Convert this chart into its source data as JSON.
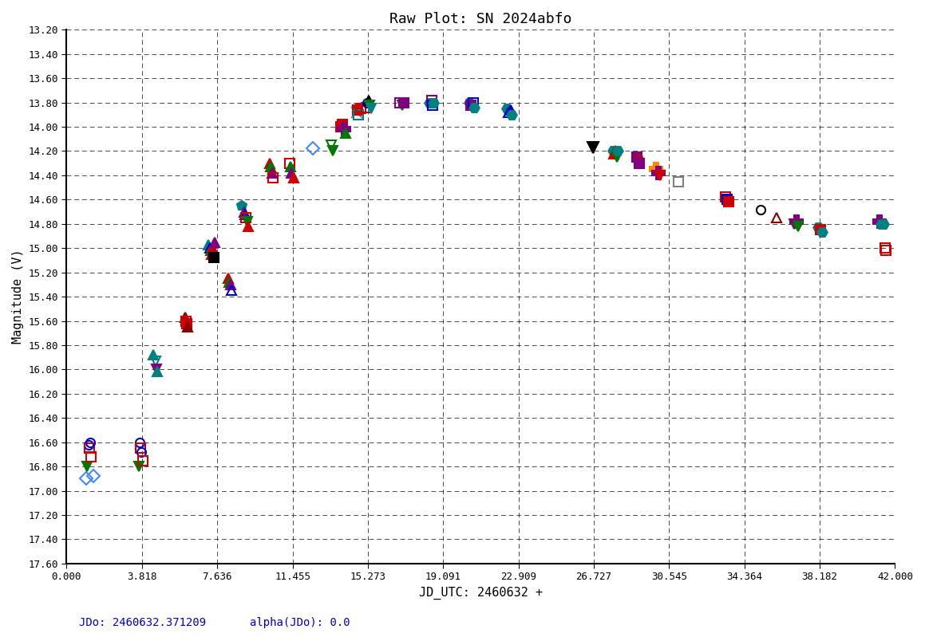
{
  "title": "Raw Plot: SN 2024abfo",
  "xlabel": "JD_UTC: 2460632 +",
  "ylabel": "Magnitude (V)",
  "xlim": [
    0.0,
    42.0
  ],
  "ylim": [
    17.6,
    13.2
  ],
  "xticks": [
    0.0,
    3.818,
    7.636,
    11.455,
    15.273,
    19.091,
    22.909,
    26.727,
    30.545,
    34.364,
    38.182,
    42.0
  ],
  "yticks": [
    13.2,
    13.4,
    13.6,
    13.8,
    14.0,
    14.2,
    14.4,
    14.6,
    14.8,
    15.0,
    15.2,
    15.4,
    15.6,
    15.8,
    16.0,
    16.2,
    16.4,
    16.6,
    16.8,
    17.0,
    17.2,
    17.4,
    17.6
  ],
  "footer_left": "JDo: 2460632.371209",
  "footer_right": "alpha(JDo): 0.0",
  "background_color": "#ffffff",
  "plot_bg_color": "#ffffff",
  "lightcurve_data": [
    [
      1.0,
      16.9,
      "#4488ff",
      "D",
      8,
      "none"
    ],
    [
      1.05,
      16.8,
      "#007700",
      "v",
      9,
      "#007700"
    ],
    [
      1.1,
      16.62,
      "#0000cc",
      "o",
      8,
      "none"
    ],
    [
      1.15,
      16.65,
      "#cc0000",
      "s",
      8,
      "none"
    ],
    [
      1.2,
      16.6,
      "#0000cc",
      "o",
      8,
      "none"
    ],
    [
      1.25,
      16.72,
      "#cc0000",
      "s",
      8,
      "none"
    ],
    [
      1.35,
      16.88,
      "#4488ff",
      "D",
      8,
      "none"
    ],
    [
      3.65,
      16.8,
      "#007700",
      "v",
      9,
      "#007700"
    ],
    [
      3.7,
      16.6,
      "#0000cc",
      "o",
      8,
      "none"
    ],
    [
      3.75,
      16.65,
      "#cc0000",
      "s",
      8,
      "none"
    ],
    [
      3.8,
      16.68,
      "#0000cc",
      "o",
      8,
      "none"
    ],
    [
      3.85,
      16.75,
      "#cc0000",
      "s",
      8,
      "none"
    ],
    [
      4.4,
      15.88,
      "#008080",
      "^",
      9,
      "#008080"
    ],
    [
      4.5,
      15.93,
      "#008080",
      "v",
      9,
      "none"
    ],
    [
      4.55,
      16.0,
      "#800080",
      "v",
      9,
      "#800080"
    ],
    [
      4.6,
      16.02,
      "#008080",
      "^",
      9,
      "#008080"
    ],
    [
      6.0,
      15.57,
      "#880000",
      "^",
      9,
      "#880000"
    ],
    [
      6.05,
      15.6,
      "#cc0000",
      "s",
      8,
      "none"
    ],
    [
      6.1,
      15.62,
      "#cc0000",
      "s",
      8,
      "#cc0000"
    ],
    [
      6.15,
      15.65,
      "#880000",
      "^",
      9,
      "#880000"
    ],
    [
      7.2,
      14.97,
      "#008080",
      "^",
      9,
      "#008080"
    ],
    [
      7.25,
      15.0,
      "#0000cc",
      "^",
      9,
      "none"
    ],
    [
      7.3,
      15.02,
      "#007700",
      "^",
      9,
      "#007700"
    ],
    [
      7.35,
      15.05,
      "#cc0000",
      "^",
      9,
      "#cc0000"
    ],
    [
      7.4,
      15.0,
      "#cc0000",
      "^",
      9,
      "#cc0000"
    ],
    [
      7.45,
      15.08,
      "#000000",
      "s",
      8,
      "#000000"
    ],
    [
      7.5,
      14.95,
      "#800080",
      "^",
      9,
      "#800080"
    ],
    [
      8.2,
      15.25,
      "#cc0000",
      "^",
      9,
      "#cc0000"
    ],
    [
      8.25,
      15.28,
      "#007700",
      "^",
      9,
      "#007700"
    ],
    [
      8.3,
      15.3,
      "#800080",
      "^",
      9,
      "#800080"
    ],
    [
      8.35,
      15.35,
      "#0000cc",
      "^",
      9,
      "none"
    ],
    [
      8.9,
      14.65,
      "#008080",
      "p",
      9,
      "#008080"
    ],
    [
      9.0,
      14.7,
      "#800080",
      "^",
      9,
      "#800080"
    ],
    [
      9.05,
      14.72,
      "#0000cc",
      "^",
      9,
      "none"
    ],
    [
      9.1,
      14.75,
      "#cc0000",
      "s",
      8,
      "none"
    ],
    [
      9.15,
      14.78,
      "#007700",
      "v",
      9,
      "#007700"
    ],
    [
      9.2,
      14.82,
      "#cc0000",
      "^",
      9,
      "#cc0000"
    ],
    [
      10.3,
      14.3,
      "#cc0000",
      "^",
      9,
      "#cc0000"
    ],
    [
      10.35,
      14.33,
      "#007700",
      "^",
      9,
      "#007700"
    ],
    [
      10.4,
      14.38,
      "#800080",
      "^",
      9,
      "#800080"
    ],
    [
      10.45,
      14.42,
      "#cc0000",
      "s",
      8,
      "none"
    ],
    [
      11.3,
      14.3,
      "#cc0000",
      "s",
      8,
      "none"
    ],
    [
      11.35,
      14.33,
      "#007700",
      "^",
      9,
      "#007700"
    ],
    [
      11.4,
      14.38,
      "#800080",
      "^",
      9,
      "#800080"
    ],
    [
      11.5,
      14.42,
      "#cc0000",
      "^",
      9,
      "#cc0000"
    ],
    [
      12.5,
      14.18,
      "#4488ff",
      "D",
      8,
      "none"
    ],
    [
      13.4,
      14.15,
      "#007700",
      "v",
      9,
      "none"
    ],
    [
      13.5,
      14.2,
      "#007700",
      "v",
      9,
      "#007700"
    ],
    [
      13.9,
      14.0,
      "#cc0000",
      "s",
      8,
      "none"
    ],
    [
      14.0,
      13.98,
      "#cc0000",
      "s",
      8,
      "#cc0000"
    ],
    [
      14.05,
      14.02,
      "#800080",
      "P",
      11,
      "#800080"
    ],
    [
      14.15,
      14.05,
      "#007700",
      "^",
      9,
      "#007700"
    ],
    [
      14.7,
      13.88,
      "#808080",
      "x",
      10,
      "#808080"
    ],
    [
      14.75,
      13.86,
      "#cc0000",
      "s",
      8,
      "#cc0000"
    ],
    [
      14.8,
      13.9,
      "#008080",
      "s",
      8,
      "none"
    ],
    [
      14.9,
      13.85,
      "#cc0000",
      "s",
      8,
      "none"
    ],
    [
      15.2,
      13.84,
      "#cc0000",
      "s",
      8,
      "none"
    ],
    [
      15.25,
      13.8,
      "#0000cc",
      "o",
      8,
      "none"
    ],
    [
      15.3,
      13.78,
      "#000000",
      "^",
      9,
      "#000000"
    ],
    [
      15.35,
      13.82,
      "#007700",
      "v",
      9,
      "#007700"
    ],
    [
      15.45,
      13.85,
      "#008080",
      "v",
      9,
      "#008080"
    ],
    [
      16.9,
      13.8,
      "#800080",
      "s",
      8,
      "none"
    ],
    [
      17.0,
      13.82,
      "#007700",
      "v",
      9,
      "#007700"
    ],
    [
      17.1,
      13.8,
      "#800080",
      "s",
      8,
      "#800080"
    ],
    [
      18.4,
      13.8,
      "#008080",
      "H",
      9,
      "#008080"
    ],
    [
      18.5,
      13.78,
      "#800080",
      "s",
      8,
      "none"
    ],
    [
      18.55,
      13.82,
      "#0000cc",
      "s",
      8,
      "none"
    ],
    [
      18.6,
      13.8,
      "#008080",
      "H",
      9,
      "#008080"
    ],
    [
      20.4,
      13.8,
      "#008080",
      "H",
      9,
      "#008080"
    ],
    [
      20.5,
      13.82,
      "#800080",
      "s",
      8,
      "#800080"
    ],
    [
      20.6,
      13.8,
      "#0000cc",
      "s",
      8,
      "none"
    ],
    [
      20.65,
      13.84,
      "#008080",
      "H",
      9,
      "#008080"
    ],
    [
      22.3,
      13.85,
      "#008080",
      "H",
      9,
      "#008080"
    ],
    [
      22.4,
      13.88,
      "#0000cc",
      "^",
      9,
      "none"
    ],
    [
      22.5,
      13.86,
      "#0000cc",
      "^",
      9,
      "#0000cc"
    ],
    [
      22.55,
      13.9,
      "#008080",
      "H",
      9,
      "#008080"
    ],
    [
      26.7,
      14.17,
      "#000000",
      "v",
      10,
      "#000000"
    ],
    [
      27.7,
      14.2,
      "#008080",
      "H",
      9,
      "#008080"
    ],
    [
      27.75,
      14.22,
      "#cc0000",
      "^",
      9,
      "#cc0000"
    ],
    [
      27.8,
      14.2,
      "#cc0000",
      "^",
      9,
      "#cc0000"
    ],
    [
      27.9,
      14.25,
      "#007700",
      "v",
      9,
      "#007700"
    ],
    [
      27.95,
      14.2,
      "#008080",
      "H",
      9,
      "#008080"
    ],
    [
      28.9,
      14.25,
      "#800080",
      "s",
      8,
      "#800080"
    ],
    [
      29.0,
      14.27,
      "#cc0000",
      "o",
      8,
      "none"
    ],
    [
      29.05,
      14.3,
      "#800080",
      "s",
      8,
      "#800080"
    ],
    [
      29.9,
      14.35,
      "#ff8800",
      "P",
      11,
      "#ff8800"
    ],
    [
      30.0,
      14.38,
      "#800080",
      "P",
      11,
      "#800080"
    ],
    [
      30.1,
      14.4,
      "#cc0000",
      "v",
      9,
      "#cc0000"
    ],
    [
      31.0,
      14.45,
      "#808080",
      "s",
      8,
      "none"
    ],
    [
      33.4,
      14.58,
      "#cc0000",
      "s",
      8,
      "none"
    ],
    [
      33.5,
      14.6,
      "#0000cc",
      "s",
      8,
      "#0000cc"
    ],
    [
      33.55,
      14.62,
      "#cc0000",
      "s",
      8,
      "#cc0000"
    ],
    [
      35.2,
      14.68,
      "#000000",
      "o",
      8,
      "none"
    ],
    [
      36.0,
      14.75,
      "#880000",
      "^",
      9,
      "none"
    ],
    [
      36.9,
      14.8,
      "#007700",
      "v",
      9,
      "#007700"
    ],
    [
      37.0,
      14.78,
      "#800080",
      "P",
      11,
      "#800080"
    ],
    [
      37.1,
      14.82,
      "#007700",
      "v",
      9,
      "#007700"
    ],
    [
      38.1,
      14.83,
      "#008080",
      "H",
      9,
      "#008080"
    ],
    [
      38.2,
      14.85,
      "#cc0000",
      "s",
      8,
      "#cc0000"
    ],
    [
      38.3,
      14.87,
      "#008080",
      "H",
      9,
      "#008080"
    ],
    [
      41.2,
      14.78,
      "#800080",
      "P",
      11,
      "#800080"
    ],
    [
      41.3,
      14.8,
      "#008080",
      "H",
      9,
      "#008080"
    ],
    [
      41.4,
      14.8,
      "#008080",
      "H",
      9,
      "#008080"
    ],
    [
      41.5,
      15.0,
      "#cc0000",
      "s",
      8,
      "none"
    ],
    [
      41.55,
      15.02,
      "#cc0000",
      "s",
      8,
      "none"
    ]
  ]
}
